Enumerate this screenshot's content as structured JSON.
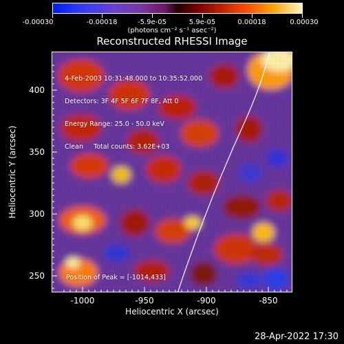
{
  "colorbar": {
    "tick_labels": [
      "-0.00030",
      "-0.00018",
      "-5.9e-05",
      "5.9e-05",
      "0.00018",
      "0.00030"
    ],
    "unit_label": "(photons cm⁻² s⁻¹ asec⁻²)"
  },
  "image": {
    "title": "Reconstructed RHESSI Image",
    "info_line_1": "4-Feb-2003 10:31:48.000 to 10:35:52.000",
    "info_line_2": "Detectors: 3F 4F 5F 6F 7F 8F, Att 0",
    "info_line_3": "Energy Range: 25.0 - 50.0 keV",
    "info_line_4": "Clean     Total counts: 3.62E+03",
    "peak_text": "Position of Peak = [-1014,433]"
  },
  "axes": {
    "x_ticks": [
      "-1000",
      "-950",
      "-900",
      "-850"
    ],
    "y_ticks": [
      "400",
      "350",
      "300",
      "250"
    ],
    "x_title": "Heliocentric X (arcsec)",
    "y_title": "Heliocentric Y (arcsec)"
  },
  "footer": {
    "timestamp": "28-Apr-2022 17:30"
  }
}
